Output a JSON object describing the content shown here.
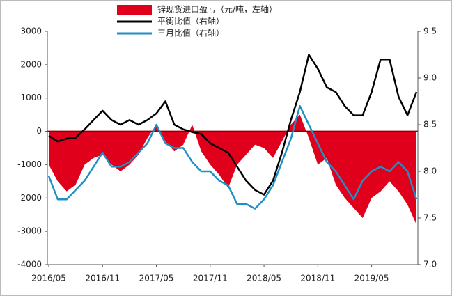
{
  "chart_data": {
    "type": "area-line",
    "categories": [
      "2016/05",
      null,
      null,
      null,
      null,
      null,
      "2016/11",
      null,
      null,
      null,
      null,
      null,
      "2017/05",
      null,
      null,
      null,
      null,
      null,
      "2017/11",
      null,
      null,
      null,
      null,
      null,
      "2018/05",
      null,
      null,
      null,
      null,
      null,
      "2018/11",
      null,
      null,
      null,
      null,
      null,
      "2019/05",
      null,
      null,
      null,
      null,
      null
    ],
    "series": [
      {
        "name": "锌现货进口盈亏（元/吨，左轴）",
        "color": "#e0001b",
        "kind": "area",
        "values": [
          -1000,
          -1500,
          -1800,
          -1600,
          -1000,
          -800,
          -700,
          -1000,
          -1200,
          -1000,
          -700,
          -200,
          200,
          -300,
          -600,
          -400,
          200,
          -600,
          -1000,
          -1300,
          -1700,
          -1000,
          -700,
          -400,
          -500,
          -800,
          -300,
          200,
          500,
          -200,
          -1000,
          -800,
          -1600,
          -2000,
          -2300,
          -2600,
          -2000,
          -1800,
          -1500,
          -1800,
          -2200,
          -2800
        ]
      },
      {
        "name": "平衡比值（右轴）",
        "color": "#000000",
        "kind": "line",
        "axis": "y2",
        "values": [
          8.38,
          8.32,
          8.35,
          8.36,
          8.45,
          8.55,
          8.65,
          8.55,
          8.5,
          8.55,
          8.5,
          8.55,
          8.62,
          8.75,
          8.5,
          8.45,
          8.42,
          8.4,
          8.3,
          8.25,
          8.2,
          8.05,
          7.9,
          7.8,
          7.75,
          7.9,
          8.2,
          8.55,
          8.85,
          9.25,
          9.1,
          8.9,
          8.85,
          8.7,
          8.6,
          8.6,
          8.85,
          9.2,
          9.2,
          8.8,
          8.6,
          8.85
        ]
      },
      {
        "name": "三月比值（右轴）",
        "color": "#1f8fc6",
        "kind": "line",
        "axis": "y2",
        "values": [
          7.95,
          7.7,
          7.7,
          7.8,
          7.9,
          8.05,
          8.2,
          8.05,
          8.05,
          8.1,
          8.2,
          8.3,
          8.5,
          8.3,
          8.25,
          8.25,
          8.1,
          8.0,
          8.0,
          7.9,
          7.85,
          7.65,
          7.65,
          7.6,
          7.7,
          7.85,
          8.1,
          8.35,
          8.7,
          8.5,
          8.3,
          8.1,
          8.0,
          7.85,
          7.7,
          7.9,
          8.0,
          8.05,
          8.0,
          8.1,
          8.0,
          7.7
        ]
      }
    ],
    "ylim": [
      -4000,
      3000
    ],
    "yticks": [
      -4000,
      -3000,
      -2000,
      -1000,
      0,
      1000,
      2000,
      3000
    ],
    "y2lim": [
      7.0,
      9.5
    ],
    "y2ticks": [
      {
        "value": 7,
        "label": "7.0"
      },
      7.5,
      {
        "value": 8,
        "label": "8.0"
      },
      8.5,
      {
        "value": 9,
        "label": "9.0"
      },
      9.5
    ]
  }
}
